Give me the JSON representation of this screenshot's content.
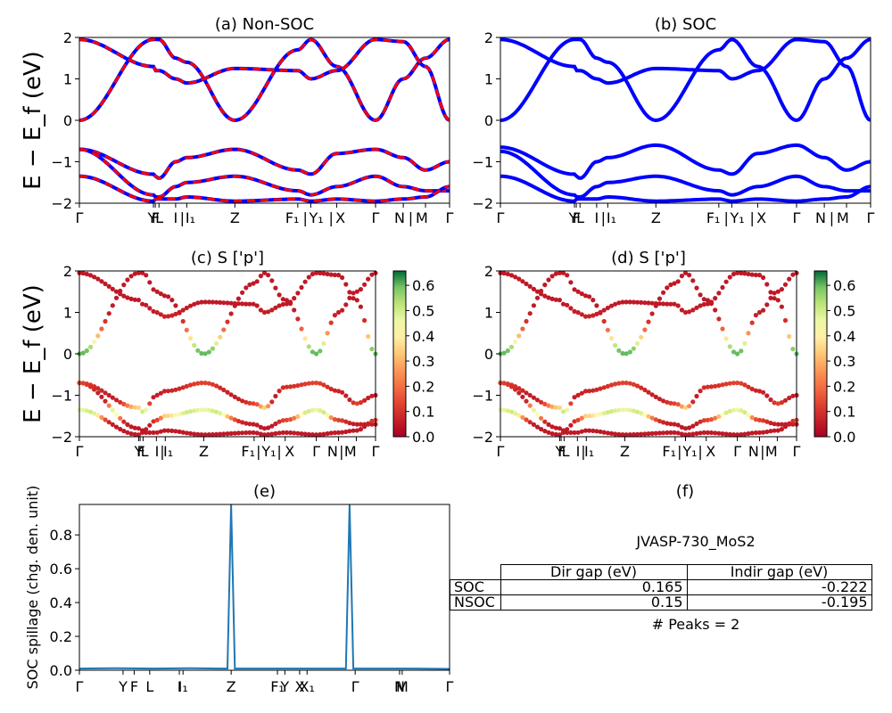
{
  "panels": [
    {
      "id": "a",
      "title": "(a) Non-SOC",
      "ylabel": "E − E_f (eV)",
      "ylim": [
        -2,
        2
      ],
      "yticks": [
        "−2",
        "−1",
        "0",
        "1",
        "2"
      ],
      "kticks": [
        "Γ",
        "Y",
        "F",
        "L",
        "I",
        "|",
        "I₁",
        "Z",
        "F₁",
        "|",
        "Y₁",
        "|",
        "X",
        "Γ",
        "N",
        "|",
        "M",
        "Γ"
      ]
    },
    {
      "id": "b",
      "title": "(b) SOC",
      "ylim": [
        -2,
        2
      ],
      "yticks": [
        "−2",
        "−1",
        "0",
        "1",
        "2"
      ]
    },
    {
      "id": "c",
      "title": "(c)  S ['p']",
      "ylabel": "E − E_f (eV)",
      "ylim": [
        -2,
        2
      ],
      "yticks": [
        "−2",
        "−1",
        "0",
        "1",
        "2"
      ],
      "colorbar_ticks": [
        "0.0",
        "0.1",
        "0.2",
        "0.3",
        "0.4",
        "0.5",
        "0.6"
      ]
    },
    {
      "id": "d",
      "title": "(d) S ['p']",
      "ylim": [
        -2,
        2
      ],
      "yticks": [
        "−2",
        "−1",
        "0",
        "1",
        "2"
      ],
      "colorbar_ticks": [
        "0.0",
        "0.1",
        "0.2",
        "0.3",
        "0.4",
        "0.5",
        "0.6"
      ]
    },
    {
      "id": "e",
      "title": "(e)",
      "ylabel": "SOC spillage (chg. den. unit)",
      "ylim": [
        0,
        0.98
      ],
      "yticks": [
        "0.0",
        "0.2",
        "0.4",
        "0.6",
        "0.8"
      ],
      "kticks": [
        "Γ",
        "Y",
        "F",
        "L",
        "I",
        "I₁",
        "Z",
        "F₁",
        "Y",
        "X",
        "X₁",
        "Γ",
        "N",
        "M",
        "Γ"
      ]
    },
    {
      "id": "f",
      "title": "(f)"
    }
  ],
  "info": {
    "material": "JVASP-730_MoS2",
    "table": {
      "headers": [
        "",
        "Dir gap (eV)",
        "Indir gap (eV)"
      ],
      "rows": [
        [
          "SOC",
          "0.165",
          "-0.222"
        ],
        [
          "NSOC",
          "0.15",
          "-0.195"
        ]
      ]
    },
    "peaks": "# Peaks = 2"
  },
  "chart_data": [
    {
      "type": "line",
      "title": "(a) Non-SOC",
      "ylabel": "E − E_f (eV)",
      "ylim": [
        -2,
        2
      ],
      "k_path": [
        "Γ",
        "Y",
        "F",
        "L",
        "I",
        "I₁",
        "Z",
        "F₁",
        "Y₁",
        "X",
        "Γ",
        "N",
        "M",
        "Γ"
      ],
      "k_positions": [
        0,
        0.2,
        0.205,
        0.215,
        0.26,
        0.29,
        0.42,
        0.59,
        0.625,
        0.695,
        0.8,
        0.875,
        0.935,
        1.0
      ],
      "series": [
        {
          "values_at_k": [
            0.0,
            1.95,
            1.95,
            1.95,
            1.5,
            1.4,
            0.0,
            1.7,
            1.95,
            1.3,
            0.0,
            1.0,
            1.5,
            1.95
          ]
        },
        {
          "values_at_k": [
            1.95,
            1.3,
            1.2,
            1.2,
            1.0,
            0.9,
            1.25,
            1.2,
            1.0,
            1.2,
            1.95,
            1.9,
            1.3,
            0.0
          ]
        },
        {
          "values_at_k": [
            -0.7,
            -1.3,
            -1.35,
            -1.4,
            -1.0,
            -0.9,
            -0.7,
            -1.2,
            -1.3,
            -0.8,
            -0.7,
            -0.9,
            -1.2,
            -1.0
          ]
        },
        {
          "values_at_k": [
            -0.7,
            -1.8,
            -1.85,
            -1.85,
            -1.6,
            -1.5,
            -1.35,
            -1.7,
            -1.8,
            -1.6,
            -1.35,
            -1.6,
            -1.7,
            -1.7
          ]
        },
        {
          "values_at_k": [
            -1.35,
            -1.95,
            -1.9,
            -1.9,
            -1.9,
            -1.85,
            -1.95,
            -1.9,
            -1.95,
            -1.9,
            -1.95,
            -1.9,
            -1.85,
            -1.6
          ]
        }
      ]
    },
    {
      "type": "line",
      "title": "(b) SOC",
      "ylim": [
        -2,
        2
      ],
      "series": [
        {
          "values_at_k": [
            0.0,
            1.95,
            1.95,
            1.95,
            1.5,
            1.4,
            0.0,
            1.7,
            1.95,
            1.3,
            0.0,
            1.0,
            1.5,
            1.95
          ]
        },
        {
          "values_at_k": [
            1.95,
            1.3,
            1.2,
            1.2,
            1.0,
            0.9,
            1.25,
            1.2,
            1.0,
            1.2,
            1.95,
            1.9,
            1.3,
            0.0
          ]
        },
        {
          "values_at_k": [
            -0.65,
            -1.3,
            -1.35,
            -1.4,
            -1.0,
            -0.9,
            -0.6,
            -1.2,
            -1.3,
            -0.8,
            -0.6,
            -0.9,
            -1.2,
            -1.0
          ]
        },
        {
          "values_at_k": [
            -0.75,
            -1.8,
            -1.85,
            -1.85,
            -1.6,
            -1.5,
            -1.35,
            -1.7,
            -1.8,
            -1.6,
            -1.35,
            -1.6,
            -1.7,
            -1.7
          ]
        },
        {
          "values_at_k": [
            -1.35,
            -1.95,
            -1.9,
            -1.9,
            -1.9,
            -1.85,
            -1.95,
            -1.9,
            -1.95,
            -1.9,
            -1.95,
            -1.9,
            -1.85,
            -1.6
          ]
        }
      ]
    },
    {
      "type": "scatter",
      "title": "(c)  S ['p']",
      "ylim": [
        -2,
        2
      ],
      "color_scale": {
        "min": 0.0,
        "max": 0.65,
        "colormap": "RdYlGn"
      }
    },
    {
      "type": "scatter",
      "title": "(d) S ['p']",
      "ylim": [
        -2,
        2
      ],
      "color_scale": {
        "min": 0.0,
        "max": 0.65,
        "colormap": "RdYlGn"
      }
    },
    {
      "type": "line",
      "title": "(e)",
      "ylabel": "SOC spillage (chg. den. unit)",
      "ylim": [
        0,
        0.98
      ],
      "x": [
        0,
        0.1,
        0.2,
        0.3,
        0.38,
        0.4,
        0.405,
        0.41,
        0.415,
        0.42,
        0.5,
        0.6,
        0.68,
        0.7,
        0.72,
        0.725,
        0.73,
        0.735,
        0.74,
        0.8,
        0.9,
        1.0
      ],
      "values": [
        0.01,
        0.012,
        0.01,
        0.012,
        0.01,
        0.01,
        0.5,
        0.98,
        0.5,
        0.01,
        0.01,
        0.01,
        0.01,
        0.01,
        0.01,
        0.5,
        0.98,
        0.5,
        0.01,
        0.01,
        0.01,
        0.008
      ],
      "color": "#1f77b4"
    }
  ]
}
